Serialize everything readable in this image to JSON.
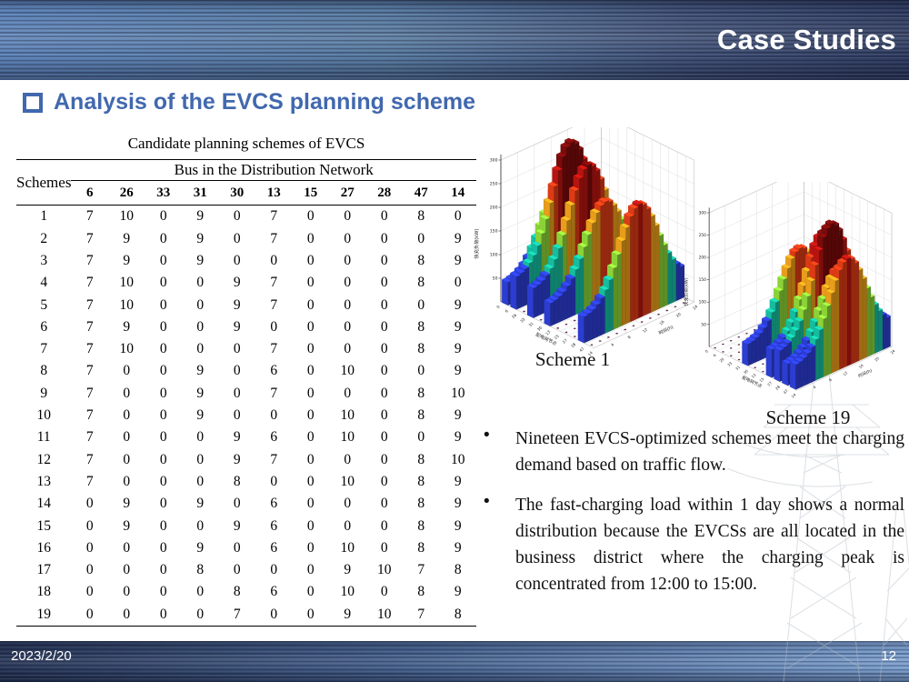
{
  "header": {
    "title": "Case Studies"
  },
  "section": {
    "title": "Analysis of the EVCS planning scheme"
  },
  "table": {
    "title": "Candidate planning schemes of EVCS",
    "row_header": "Schemes",
    "col_group_header": "Bus in the Distribution Network",
    "bus_columns": [
      "6",
      "26",
      "33",
      "31",
      "30",
      "13",
      "15",
      "27",
      "28",
      "47",
      "14"
    ],
    "rows": [
      {
        "scheme": "1",
        "values": [
          7,
          10,
          0,
          9,
          0,
          7,
          0,
          0,
          0,
          8,
          0
        ]
      },
      {
        "scheme": "2",
        "values": [
          7,
          9,
          0,
          9,
          0,
          7,
          0,
          0,
          0,
          0,
          9
        ]
      },
      {
        "scheme": "3",
        "values": [
          7,
          9,
          0,
          9,
          0,
          0,
          0,
          0,
          0,
          8,
          9
        ]
      },
      {
        "scheme": "4",
        "values": [
          7,
          10,
          0,
          0,
          9,
          7,
          0,
          0,
          0,
          8,
          0
        ]
      },
      {
        "scheme": "5",
        "values": [
          7,
          10,
          0,
          0,
          9,
          7,
          0,
          0,
          0,
          0,
          9
        ]
      },
      {
        "scheme": "6",
        "values": [
          7,
          9,
          0,
          0,
          9,
          0,
          0,
          0,
          0,
          8,
          9
        ]
      },
      {
        "scheme": "7",
        "values": [
          7,
          10,
          0,
          0,
          0,
          7,
          0,
          0,
          0,
          8,
          9
        ]
      },
      {
        "scheme": "8",
        "values": [
          7,
          0,
          0,
          9,
          0,
          6,
          0,
          10,
          0,
          0,
          9
        ]
      },
      {
        "scheme": "9",
        "values": [
          7,
          0,
          0,
          9,
          0,
          7,
          0,
          0,
          0,
          8,
          10
        ]
      },
      {
        "scheme": "10",
        "values": [
          7,
          0,
          0,
          9,
          0,
          0,
          0,
          10,
          0,
          8,
          9
        ]
      },
      {
        "scheme": "11",
        "values": [
          7,
          0,
          0,
          0,
          9,
          6,
          0,
          10,
          0,
          0,
          9
        ]
      },
      {
        "scheme": "12",
        "values": [
          7,
          0,
          0,
          0,
          9,
          7,
          0,
          0,
          0,
          8,
          10
        ]
      },
      {
        "scheme": "13",
        "values": [
          7,
          0,
          0,
          0,
          8,
          0,
          0,
          10,
          0,
          8,
          9
        ]
      },
      {
        "scheme": "14",
        "values": [
          0,
          9,
          0,
          9,
          0,
          6,
          0,
          0,
          0,
          8,
          9
        ]
      },
      {
        "scheme": "15",
        "values": [
          0,
          9,
          0,
          0,
          9,
          6,
          0,
          0,
          0,
          8,
          9
        ]
      },
      {
        "scheme": "16",
        "values": [
          0,
          0,
          0,
          9,
          0,
          6,
          0,
          10,
          0,
          8,
          9
        ]
      },
      {
        "scheme": "17",
        "values": [
          0,
          0,
          0,
          8,
          0,
          0,
          0,
          9,
          10,
          7,
          8
        ]
      },
      {
        "scheme": "18",
        "values": [
          0,
          0,
          0,
          0,
          8,
          6,
          0,
          10,
          0,
          8,
          9
        ]
      },
      {
        "scheme": "19",
        "values": [
          0,
          0,
          0,
          0,
          7,
          0,
          0,
          9,
          10,
          7,
          8
        ]
      }
    ]
  },
  "chart_data": [
    {
      "type": "bar",
      "subtype": "3d-bar-grid",
      "caption": "Scheme 1",
      "zlabel": "快充负荷(kW)",
      "xlabel": "配电网节点",
      "tlabel": "时间(h)",
      "z_ticks": [
        50,
        100,
        150,
        200,
        250,
        300
      ],
      "z_max": 300,
      "x_tick_labels": [
        "0",
        "6",
        "26",
        "33",
        "31",
        "30",
        "13",
        "15",
        "27",
        "28",
        "47",
        "14"
      ],
      "t_tick_labels": [
        4,
        8,
        12,
        16,
        20,
        24
      ],
      "hours": 24,
      "nodes": [
        "6",
        "26",
        "33",
        "31",
        "30",
        "13",
        "15",
        "27",
        "28",
        "47",
        "14"
      ],
      "capacities": [
        7,
        10,
        0,
        9,
        0,
        7,
        0,
        0,
        0,
        8,
        0
      ],
      "kw_per_charger": 30,
      "profile": {
        "peak_hour": 13.5,
        "sigma_hours": 4.5,
        "base_fraction": 0.22
      },
      "colormap": [
        [
          0.27,
          "#2d3fd8"
        ],
        [
          0.42,
          "#16c2a3"
        ],
        [
          0.55,
          "#8fd83a"
        ],
        [
          0.68,
          "#efa21c"
        ],
        [
          0.8,
          "#e33d17"
        ],
        [
          0.9,
          "#bc1510"
        ],
        [
          1.01,
          "#7d0b0b"
        ]
      ],
      "grid": true
    },
    {
      "type": "bar",
      "subtype": "3d-bar-grid",
      "caption": "Scheme 19",
      "zlabel": "快充负荷(kW)",
      "xlabel": "配电网节点",
      "tlabel": "时间(h)",
      "z_ticks": [
        50,
        100,
        150,
        200,
        250,
        300
      ],
      "z_max": 300,
      "x_tick_labels": [
        "0",
        "6",
        "26",
        "33",
        "31",
        "30",
        "13",
        "15",
        "27",
        "28",
        "47",
        "14"
      ],
      "t_tick_labels": [
        4,
        8,
        12,
        16,
        20,
        24
      ],
      "hours": 24,
      "nodes": [
        "6",
        "26",
        "33",
        "31",
        "30",
        "13",
        "15",
        "27",
        "28",
        "47",
        "14"
      ],
      "capacities": [
        0,
        0,
        0,
        0,
        7,
        0,
        0,
        9,
        10,
        7,
        8
      ],
      "kw_per_charger": 30,
      "profile": {
        "peak_hour": 13.5,
        "sigma_hours": 4.5,
        "base_fraction": 0.22
      },
      "colormap": [
        [
          0.27,
          "#2d3fd8"
        ],
        [
          0.42,
          "#16c2a3"
        ],
        [
          0.55,
          "#8fd83a"
        ],
        [
          0.68,
          "#efa21c"
        ],
        [
          0.8,
          "#e33d17"
        ],
        [
          0.9,
          "#bc1510"
        ],
        [
          1.01,
          "#7d0b0b"
        ]
      ],
      "grid": true
    }
  ],
  "bullets": [
    "Nineteen EVCS-optimized schemes meet the charging demand based on traffic flow.",
    "The fast-charging load within 1 day shows a normal distribution because the EVCSs are all located in the business district where the charging peak is concentrated from 12:00 to 15:00."
  ],
  "footer": {
    "date": "2023/2/20",
    "page_number": "12"
  },
  "colors": {
    "accent_blue": "#4168ae",
    "header_left": "#5b81b7",
    "header_right": "#2d3a5e",
    "footer_left": "#243253",
    "footer_right": "#7b9fce"
  }
}
